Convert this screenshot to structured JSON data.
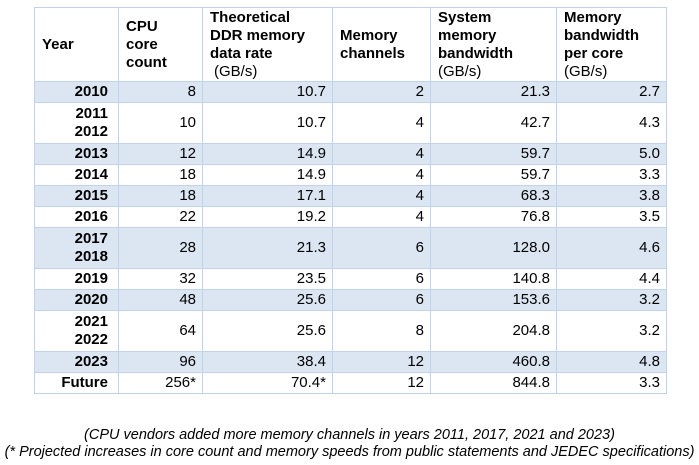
{
  "header": {
    "year": "Year",
    "cpu_core_count": [
      "CPU",
      "core",
      "count"
    ],
    "ddr_rate": [
      "Theoretical",
      "DDR memory",
      "data rate"
    ],
    "ddr_unit": "(GB/s)",
    "memory_channels": [
      "Memory",
      "channels"
    ],
    "system_bw": [
      "System",
      "memory",
      "bandwidth"
    ],
    "system_bw_unit": "(GB/s)",
    "bw_per_core": [
      "Memory",
      "bandwidth",
      "per core"
    ],
    "bw_per_core_unit": "(GB/s)"
  },
  "rows": [
    {
      "year": [
        "2010"
      ],
      "cores": "8",
      "ddr": "10.7",
      "channels": "2",
      "bw": "21.3",
      "bwc": "2.7"
    },
    {
      "year": [
        "2011",
        "2012"
      ],
      "cores": "10",
      "ddr": "10.7",
      "channels": "4",
      "bw": "42.7",
      "bwc": "4.3"
    },
    {
      "year": [
        "2013"
      ],
      "cores": "12",
      "ddr": "14.9",
      "channels": "4",
      "bw": "59.7",
      "bwc": "5.0"
    },
    {
      "year": [
        "2014"
      ],
      "cores": "18",
      "ddr": "14.9",
      "channels": "4",
      "bw": "59.7",
      "bwc": "3.3"
    },
    {
      "year": [
        "2015"
      ],
      "cores": "18",
      "ddr": "17.1",
      "channels": "4",
      "bw": "68.3",
      "bwc": "3.8"
    },
    {
      "year": [
        "2016"
      ],
      "cores": "22",
      "ddr": "19.2",
      "channels": "4",
      "bw": "76.8",
      "bwc": "3.5"
    },
    {
      "year": [
        "2017",
        "2018"
      ],
      "cores": "28",
      "ddr": "21.3",
      "channels": "6",
      "bw": "128.0",
      "bwc": "4.6"
    },
    {
      "year": [
        "2019"
      ],
      "cores": "32",
      "ddr": "23.5",
      "channels": "6",
      "bw": "140.8",
      "bwc": "4.4"
    },
    {
      "year": [
        "2020"
      ],
      "cores": "48",
      "ddr": "25.6",
      "channels": "6",
      "bw": "153.6",
      "bwc": "3.2"
    },
    {
      "year": [
        "2021",
        "2022"
      ],
      "cores": "64",
      "ddr": "25.6",
      "channels": "8",
      "bw": "204.8",
      "bwc": "3.2"
    },
    {
      "year": [
        "2023"
      ],
      "cores": "96",
      "ddr": "38.4",
      "channels": "12",
      "bw": "460.8",
      "bwc": "4.8"
    },
    {
      "year": [
        "Future"
      ],
      "cores": "256*",
      "ddr": "70.4*",
      "channels": "12",
      "bw": "844.8",
      "bwc": "3.3"
    }
  ],
  "notes": {
    "line1": "(CPU vendors added more memory channels in years 2011, 2017, 2021 and 2023)",
    "line2": "(* Projected increases in core count and memory speeds from public statements and JEDEC specifications)"
  },
  "style": {
    "shaded_row_color": "#dce6f2",
    "border_color": "#bfd3ea"
  }
}
